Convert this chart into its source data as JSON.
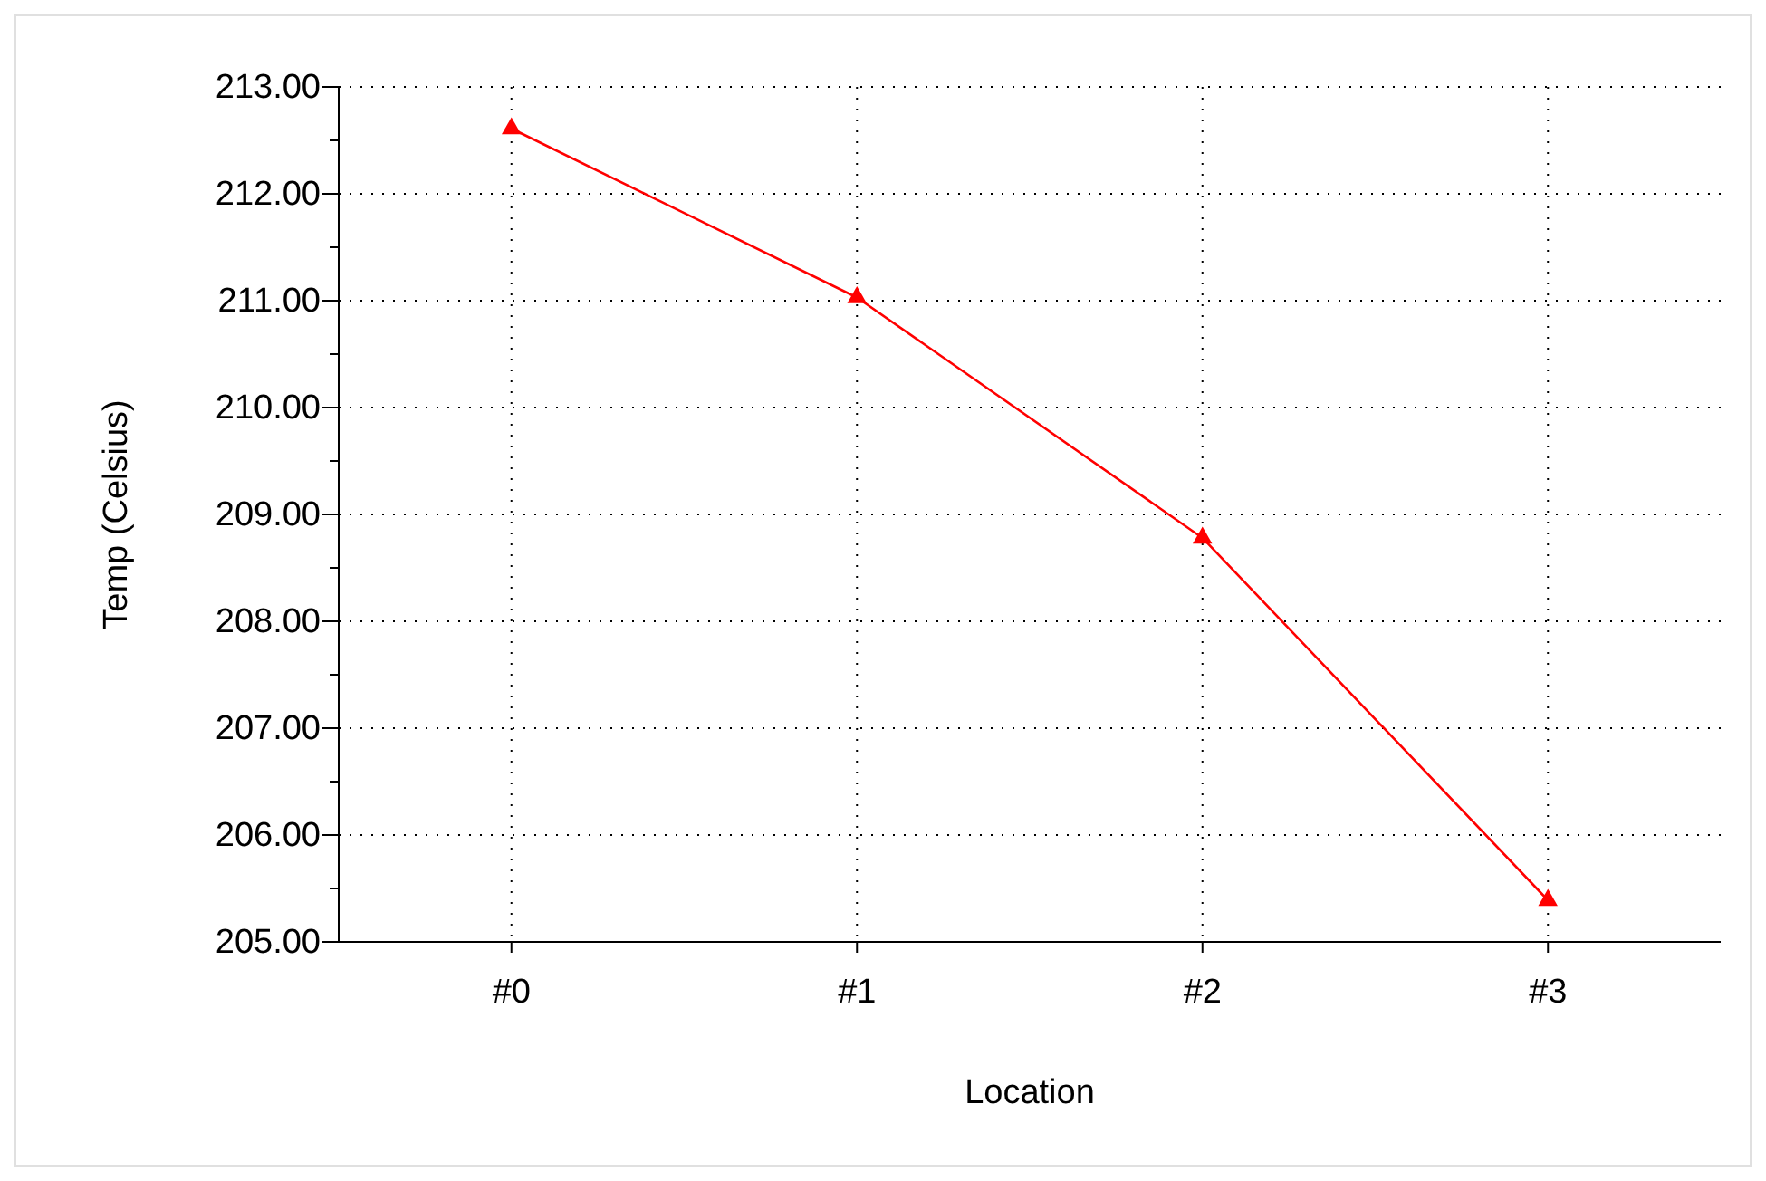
{
  "chart_data": {
    "type": "line",
    "xlabel": "Location",
    "ylabel": "Temp (Celsius)",
    "categories": [
      "#0",
      "#1",
      "#2",
      "#3"
    ],
    "series": [
      {
        "color": "#ff0000",
        "values": [
          212.61,
          211.03,
          208.78,
          205.39
        ]
      }
    ],
    "ylim": [
      205,
      213
    ],
    "yticks": [
      {
        "value": 205,
        "label": "205.00"
      },
      {
        "value": 205.5,
        "label": null
      },
      {
        "value": 206,
        "label": "206.00"
      },
      {
        "value": 206.5,
        "label": null
      },
      {
        "value": 207,
        "label": "207.00"
      },
      {
        "value": 207.5,
        "label": null
      },
      {
        "value": 208,
        "label": "208.00"
      },
      {
        "value": 208.5,
        "label": null
      },
      {
        "value": 209,
        "label": "209.00"
      },
      {
        "value": 209.5,
        "label": null
      },
      {
        "value": 210,
        "label": "210.00"
      },
      {
        "value": 210.5,
        "label": null
      },
      {
        "value": 211,
        "label": "211.00"
      },
      {
        "value": 211.5,
        "label": null
      },
      {
        "value": 212,
        "label": "212.00"
      },
      {
        "value": 212.5,
        "label": null
      },
      {
        "value": 213,
        "label": "213.00"
      }
    ],
    "grid": true,
    "marker": "triangle",
    "line_style": "solid"
  }
}
